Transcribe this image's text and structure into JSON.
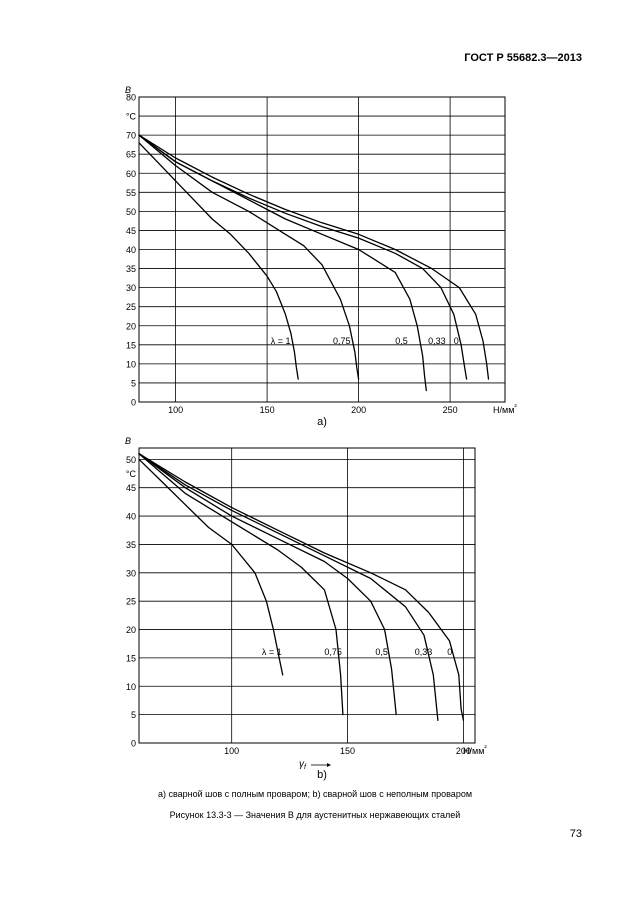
{
  "document": {
    "header": "ГОСТ Р 55682.3—2013",
    "page_number": "73",
    "caption_parts": "a) сварной шов с полным проваром; b) сварной шов с неполным проваром",
    "caption_figure": "Рисунок 13.3-3 — Значения В для аустенитных нержавеющих сталей"
  },
  "chart_data": [
    {
      "type": "line",
      "panel_label": "a)",
      "ylabel": "B",
      "yunit": "°C",
      "xunit_label": "Н/мм²",
      "xlabel": "",
      "xlim": [
        80,
        280
      ],
      "ylim": [
        0,
        80
      ],
      "x_ticks": [
        100,
        150,
        200,
        250
      ],
      "y_ticks": [
        0,
        5,
        10,
        15,
        20,
        25,
        30,
        35,
        40,
        45,
        50,
        55,
        60,
        65,
        70,
        75,
        80
      ],
      "grid": true,
      "series": [
        {
          "name": "λ = 1",
          "label_at": [
            152,
            16
          ],
          "points": [
            [
              80,
              68
            ],
            [
              90,
              63
            ],
            [
              100,
              58
            ],
            [
              110,
              53
            ],
            [
              120,
              48
            ],
            [
              130,
              44
            ],
            [
              140,
              39
            ],
            [
              150,
              33
            ],
            [
              155,
              29
            ],
            [
              160,
              23
            ],
            [
              163,
              18
            ],
            [
              165,
              13
            ],
            [
              166,
              9
            ],
            [
              167,
              6
            ]
          ]
        },
        {
          "name": "0,75",
          "label_at": [
            186,
            16
          ],
          "points": [
            [
              80,
              70
            ],
            [
              100,
              62
            ],
            [
              120,
              55
            ],
            [
              140,
              50
            ],
            [
              160,
              44
            ],
            [
              170,
              41
            ],
            [
              180,
              36
            ],
            [
              190,
              27
            ],
            [
              195,
              20
            ],
            [
              198,
              13
            ],
            [
              199,
              9
            ],
            [
              200,
              6
            ]
          ]
        },
        {
          "name": "0,5",
          "label_at": [
            220,
            16
          ],
          "points": [
            [
              80,
              70
            ],
            [
              100,
              63
            ],
            [
              120,
              58
            ],
            [
              140,
              53
            ],
            [
              160,
              48
            ],
            [
              180,
              44
            ],
            [
              200,
              40
            ],
            [
              210,
              37
            ],
            [
              220,
              34
            ],
            [
              228,
              27
            ],
            [
              232,
              20
            ],
            [
              235,
              12
            ],
            [
              236,
              7
            ],
            [
              237,
              3
            ]
          ]
        },
        {
          "name": "0,33",
          "label_at": [
            238,
            16
          ],
          "points": [
            [
              80,
              70
            ],
            [
              100,
              63
            ],
            [
              120,
              58
            ],
            [
              140,
              53.5
            ],
            [
              160,
              49.5
            ],
            [
              180,
              46
            ],
            [
              200,
              43
            ],
            [
              220,
              39
            ],
            [
              235,
              35
            ],
            [
              245,
              30
            ],
            [
              252,
              23
            ],
            [
              256,
              15
            ],
            [
              258,
              9
            ],
            [
              259,
              6
            ]
          ]
        },
        {
          "name": "0",
          "label_at": [
            252,
            16
          ],
          "points": [
            [
              80,
              70
            ],
            [
              100,
              64
            ],
            [
              120,
              59
            ],
            [
              140,
              54.5
            ],
            [
              160,
              50.5
            ],
            [
              180,
              47
            ],
            [
              200,
              44
            ],
            [
              220,
              40
            ],
            [
              240,
              35
            ],
            [
              255,
              30
            ],
            [
              264,
              23
            ],
            [
              268,
              16
            ],
            [
              270,
              10
            ],
            [
              271,
              6
            ]
          ]
        }
      ]
    },
    {
      "type": "line",
      "panel_label": "b)",
      "ylabel": "B",
      "yunit": "°C",
      "xunit_label": "Н/мм²",
      "xlabel": "γf",
      "xlim": [
        60,
        205
      ],
      "ylim": [
        0,
        52
      ],
      "x_ticks": [
        100,
        150,
        200
      ],
      "y_ticks": [
        0,
        5,
        10,
        15,
        20,
        25,
        30,
        35,
        40,
        45,
        50
      ],
      "grid": true,
      "series": [
        {
          "name": "λ = 1",
          "label_at": [
            113,
            16
          ],
          "points": [
            [
              60,
              50
            ],
            [
              70,
              46
            ],
            [
              80,
              42
            ],
            [
              90,
              38
            ],
            [
              100,
              35
            ],
            [
              110,
              30
            ],
            [
              115,
              25
            ],
            [
              118,
              20
            ],
            [
              120,
              16
            ],
            [
              122,
              12
            ]
          ]
        },
        {
          "name": "0,75",
          "label_at": [
            140,
            16
          ],
          "points": [
            [
              60,
              51
            ],
            [
              80,
              44
            ],
            [
              100,
              39
            ],
            [
              120,
              34
            ],
            [
              130,
              31
            ],
            [
              140,
              27
            ],
            [
              145,
              20
            ],
            [
              147,
              12
            ],
            [
              148,
              5
            ]
          ]
        },
        {
          "name": "0,5",
          "label_at": [
            162,
            16
          ],
          "points": [
            [
              60,
              51
            ],
            [
              80,
              45
            ],
            [
              100,
              40
            ],
            [
              120,
              36
            ],
            [
              140,
              32
            ],
            [
              150,
              29
            ],
            [
              160,
              25
            ],
            [
              166,
              20
            ],
            [
              169,
              13
            ],
            [
              171,
              5
            ]
          ]
        },
        {
          "name": "0,33",
          "label_at": [
            179,
            16
          ],
          "points": [
            [
              60,
              51
            ],
            [
              80,
              45.5
            ],
            [
              100,
              41
            ],
            [
              120,
              37
            ],
            [
              140,
              33
            ],
            [
              160,
              29
            ],
            [
              175,
              24
            ],
            [
              183,
              19
            ],
            [
              187,
              12
            ],
            [
              189,
              4
            ]
          ]
        },
        {
          "name": "0",
          "label_at": [
            193,
            16
          ],
          "points": [
            [
              60,
              51
            ],
            [
              80,
              46
            ],
            [
              100,
              41.5
            ],
            [
              120,
              37.5
            ],
            [
              140,
              33.5
            ],
            [
              160,
              30
            ],
            [
              175,
              27
            ],
            [
              185,
              23
            ],
            [
              194,
              18
            ],
            [
              198,
              12
            ],
            [
              199,
              6
            ],
            [
              200,
              4
            ]
          ]
        }
      ]
    }
  ]
}
